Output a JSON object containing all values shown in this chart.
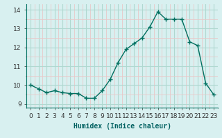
{
  "x": [
    0,
    1,
    2,
    3,
    4,
    5,
    6,
    7,
    8,
    9,
    10,
    11,
    12,
    13,
    14,
    15,
    16,
    17,
    18,
    19,
    20,
    21,
    22,
    23
  ],
  "y": [
    10.0,
    9.8,
    9.6,
    9.7,
    9.6,
    9.55,
    9.55,
    9.3,
    9.3,
    9.7,
    10.3,
    11.2,
    11.9,
    12.2,
    12.5,
    13.1,
    13.9,
    13.5,
    13.5,
    13.5,
    12.3,
    12.1,
    10.1,
    9.5
  ],
  "line_color": "#007060",
  "marker_color": "#007060",
  "bg_color": "#d8f0f0",
  "grid_major_color": "#b0d8d0",
  "grid_minor_color": "#e8c8c8",
  "xlabel": "Humidex (Indice chaleur)",
  "xlim": [
    -0.5,
    23.5
  ],
  "ylim": [
    8.8,
    14.3
  ],
  "yticks": [
    9,
    10,
    11,
    12,
    13,
    14
  ],
  "xlabel_fontsize": 7,
  "tick_fontsize": 6.5,
  "marker_size": 2.5,
  "line_width": 1.0
}
